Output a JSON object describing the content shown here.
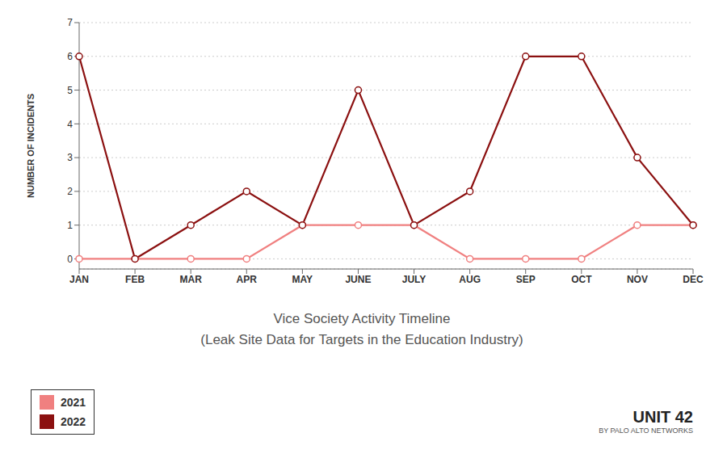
{
  "chart_data": {
    "type": "line",
    "title": "Vice Society Activity Timeline",
    "subtitle": "(Leak Site Data for Targets in the Education Industry)",
    "y_label": "NUMBER OF INCIDENTS",
    "categories": [
      "JAN",
      "FEB",
      "MAR",
      "APR",
      "MAY",
      "JUNE",
      "JULY",
      "AUG",
      "SEP",
      "OCT",
      "NOV",
      "DEC"
    ],
    "series": [
      {
        "name": "2021",
        "color": "#F08080",
        "marker": "circle",
        "values": [
          0,
          0,
          0,
          0,
          1,
          1,
          1,
          0,
          0,
          0,
          1,
          1
        ]
      },
      {
        "name": "2022",
        "color": "#8B1010",
        "marker": "circle",
        "values": [
          6,
          0,
          1,
          2,
          1,
          5,
          1,
          2,
          6,
          6,
          3,
          1
        ]
      }
    ],
    "ylim": [
      -0.3,
      7
    ],
    "yticks": [
      0,
      1,
      2,
      3,
      4,
      5,
      6,
      7
    ],
    "grid": true,
    "legend": "lower-left",
    "annotations": [
      "UNIT 42",
      "BY PALO ALTO NETWORKS"
    ]
  }
}
